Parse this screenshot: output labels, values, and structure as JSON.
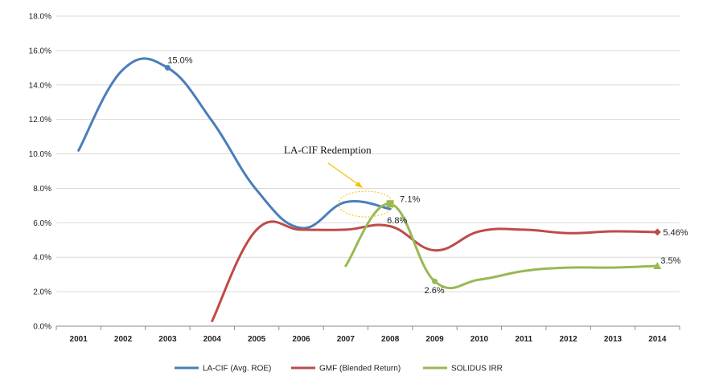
{
  "chart_data": {
    "type": "line",
    "categories": [
      "2001",
      "2002",
      "2003",
      "2004",
      "2005",
      "2006",
      "2007",
      "2008",
      "2009",
      "2010",
      "2011",
      "2012",
      "2013",
      "2014"
    ],
    "ylim": [
      0,
      18
    ],
    "y_ticks": [
      "0.0%",
      "2.0%",
      "4.0%",
      "6.0%",
      "8.0%",
      "10.0%",
      "12.0%",
      "14.0%",
      "16.0%",
      "18.0%"
    ],
    "grid": true,
    "legend_position": "bottom",
    "series": [
      {
        "name": "LA-CIF (Avg. ROE)",
        "color": "#4a7ebb",
        "values": [
          10.2,
          14.9,
          15.0,
          11.9,
          7.9,
          5.7,
          7.2,
          6.8,
          null,
          null,
          null,
          null,
          null,
          null
        ],
        "labels": [
          {
            "index": 2,
            "text": "15.0%"
          },
          {
            "index": 7,
            "text": "6.8%"
          }
        ]
      },
      {
        "name": "GMF (Blended Return)",
        "color": "#be4b48",
        "values": [
          null,
          null,
          null,
          0.3,
          5.6,
          5.6,
          5.6,
          5.8,
          4.4,
          5.5,
          5.6,
          5.4,
          5.5,
          5.46
        ],
        "labels": [
          {
            "index": 13,
            "text": "5.46%"
          }
        ]
      },
      {
        "name": "SOLIDUS IRR",
        "color": "#98b954",
        "values": [
          null,
          null,
          null,
          null,
          null,
          null,
          3.5,
          7.1,
          2.6,
          2.7,
          3.2,
          3.4,
          3.4,
          3.5
        ],
        "labels": [
          {
            "index": 7,
            "text": "7.1%"
          },
          {
            "index": 8,
            "text": "2.6%"
          },
          {
            "index": 13,
            "text": "3.5%"
          }
        ]
      }
    ],
    "annotation": {
      "text": "LA-CIF Redemption"
    }
  }
}
